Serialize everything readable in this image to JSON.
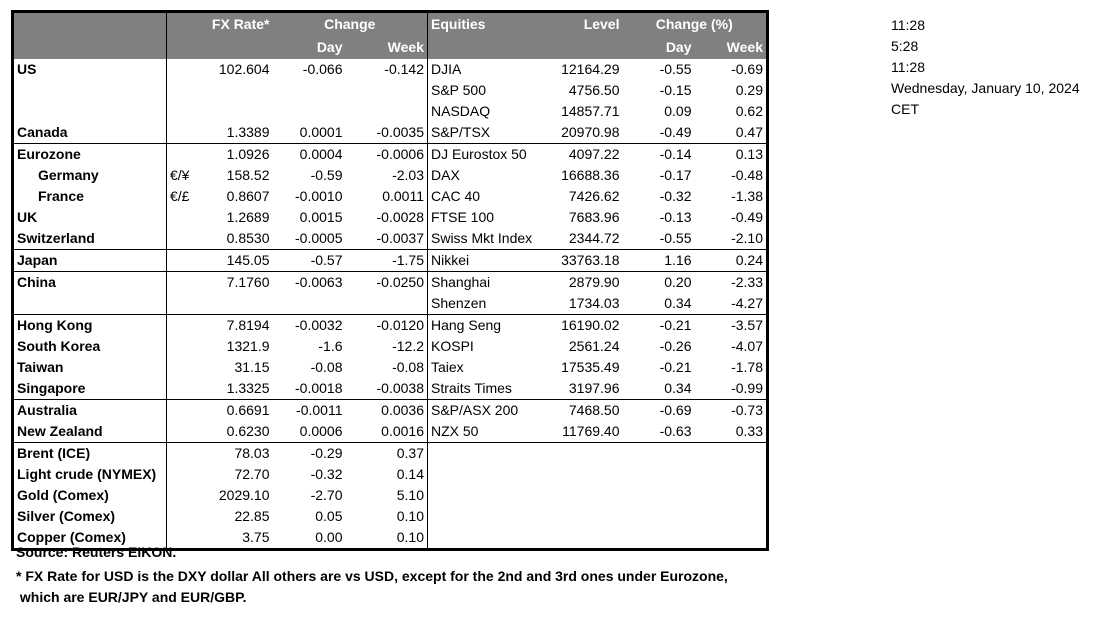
{
  "header": {
    "fx_rate": "FX Rate*",
    "change": "Change",
    "day": "Day",
    "week": "Week",
    "equities": "Equities",
    "level": "Level",
    "change_pct": "Change (%)",
    "eq_day": "Day",
    "eq_week": "Week"
  },
  "rows": [
    {
      "name": "US",
      "sym": "",
      "fx": "102.604",
      "day": "-0.066",
      "week": "-0.142",
      "eq": "DJIA",
      "level": "12164.29",
      "eday": "-0.55",
      "eweek": "-0.69"
    },
    {
      "name": "",
      "sym": "",
      "fx": "",
      "day": "",
      "week": "",
      "eq": "S&P 500",
      "level": "4756.50",
      "eday": "-0.15",
      "eweek": "0.29"
    },
    {
      "name": "",
      "sym": "",
      "fx": "",
      "day": "",
      "week": "",
      "eq": "NASDAQ",
      "level": "14857.71",
      "eday": "0.09",
      "eweek": "0.62"
    },
    {
      "name": "Canada",
      "sym": "",
      "fx": "1.3389",
      "day": "0.0001",
      "week": "-0.0035",
      "eq": "S&P/TSX",
      "level": "20970.98",
      "eday": "-0.49",
      "eweek": "0.47",
      "sep": true
    },
    {
      "name": "Eurozone",
      "sym": "",
      "fx": "1.0926",
      "day": "0.0004",
      "week": "-0.0006",
      "eq": "DJ Eurostox 50",
      "level": "4097.22",
      "eday": "-0.14",
      "eweek": "0.13"
    },
    {
      "name": "Germany",
      "indent": true,
      "sym": "€/¥",
      "fx": "158.52",
      "day": "-0.59",
      "week": "-2.03",
      "eq": "DAX",
      "level": "16688.36",
      "eday": "-0.17",
      "eweek": "-0.48"
    },
    {
      "name": "France",
      "indent": true,
      "sym": "€/£",
      "fx": "0.8607",
      "day": "-0.0010",
      "week": "0.0011",
      "eq": "CAC 40",
      "level": "7426.62",
      "eday": "-0.32",
      "eweek": "-1.38"
    },
    {
      "name": "UK",
      "sym": "",
      "fx": "1.2689",
      "day": "0.0015",
      "week": "-0.0028",
      "eq": "FTSE 100",
      "level": "7683.96",
      "eday": "-0.13",
      "eweek": "-0.49"
    },
    {
      "name": "Switzerland",
      "sym": "",
      "fx": "0.8530",
      "day": "-0.0005",
      "week": "-0.0037",
      "eq": "Swiss Mkt Index",
      "level": "2344.72",
      "eday": "-0.55",
      "eweek": "-2.10",
      "sep": true
    },
    {
      "name": "Japan",
      "sym": "",
      "fx": "145.05",
      "day": "-0.57",
      "week": "-1.75",
      "eq": "Nikkei",
      "level": "33763.18",
      "eday": "1.16",
      "eweek": "0.24",
      "sep": true
    },
    {
      "name": "China",
      "sym": "",
      "fx": "7.1760",
      "day": "-0.0063",
      "week": "-0.0250",
      "eq": "Shanghai",
      "level": "2879.90",
      "eday": "0.20",
      "eweek": "-2.33"
    },
    {
      "name": "",
      "sym": "",
      "fx": "",
      "day": "",
      "week": "",
      "eq": "Shenzen",
      "level": "1734.03",
      "eday": "0.34",
      "eweek": "-4.27",
      "sep": true
    },
    {
      "name": "Hong Kong",
      "sym": "",
      "fx": "7.8194",
      "day": "-0.0032",
      "week": "-0.0120",
      "eq": "Hang Seng",
      "level": "16190.02",
      "eday": "-0.21",
      "eweek": "-3.57"
    },
    {
      "name": "South Korea",
      "sym": "",
      "fx": "1321.9",
      "day": "-1.6",
      "week": "-12.2",
      "eq": "KOSPI",
      "level": "2561.24",
      "eday": "-0.26",
      "eweek": "-4.07"
    },
    {
      "name": "Taiwan",
      "sym": "",
      "fx": "31.15",
      "day": "-0.08",
      "week": "-0.08",
      "eq": "Taiex",
      "level": "17535.49",
      "eday": "-0.21",
      "eweek": "-1.78"
    },
    {
      "name": "Singapore",
      "sym": "",
      "fx": "1.3325",
      "day": "-0.0018",
      "week": "-0.0038",
      "eq": "Straits Times",
      "level": "3197.96",
      "eday": "0.34",
      "eweek": "-0.99",
      "sep": true
    },
    {
      "name": "Australia",
      "sym": "",
      "fx": "0.6691",
      "day": "-0.0011",
      "week": "0.0036",
      "eq": "S&P/ASX  200",
      "level": "7468.50",
      "eday": "-0.69",
      "eweek": "-0.73"
    },
    {
      "name": "New Zealand",
      "sym": "",
      "fx": "0.6230",
      "day": "0.0006",
      "week": "0.0016",
      "eq": "NZX 50",
      "level": "11769.40",
      "eday": "-0.63",
      "eweek": "0.33",
      "sep": true
    },
    {
      "name": "Brent (ICE)",
      "sym": "",
      "fx": "78.03",
      "day": "-0.29",
      "week": "0.37",
      "eq": "",
      "level": "",
      "eday": "",
      "eweek": ""
    },
    {
      "name": "Light crude (NYMEX)",
      "sym": "",
      "fx": "72.70",
      "day": "-0.32",
      "week": "0.14",
      "eq": "",
      "level": "",
      "eday": "",
      "eweek": ""
    },
    {
      "name": "Gold (Comex)",
      "sym": "",
      "fx": "2029.10",
      "day": "-2.70",
      "week": "5.10",
      "eq": "",
      "level": "",
      "eday": "",
      "eweek": ""
    },
    {
      "name": "Silver (Comex)",
      "sym": "",
      "fx": "22.85",
      "day": "0.05",
      "week": "0.10",
      "eq": "",
      "level": "",
      "eday": "",
      "eweek": ""
    },
    {
      "name": "Copper (Comex)",
      "sym": "",
      "fx": "3.75",
      "day": "0.00",
      "week": "0.10",
      "eq": "",
      "level": "",
      "eday": "",
      "eweek": ""
    }
  ],
  "footer": {
    "source": "Source:  Reuters EIKON.",
    "note1": "* FX Rate for USD is the DXY dollar  All others are vs USD, except for the 2nd and 3rd ones under Eurozone,",
    "note2": " which are EUR/JPY and EUR/GBP."
  },
  "side": [
    "11:28",
    "5:28",
    "11:28",
    "Wednesday, January 10, 2024",
    "CET"
  ]
}
